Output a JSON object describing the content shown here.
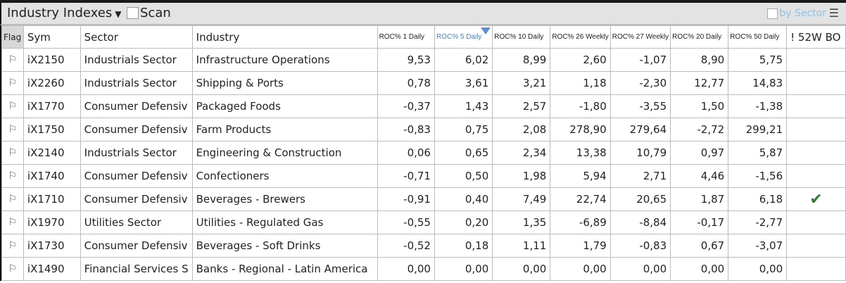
{
  "toolbar": {
    "title": "Industry Indexes",
    "scan_label": "Scan",
    "by_sector_label": "by Sector"
  },
  "columns": [
    "Flag",
    "Sym",
    "Sector",
    "Industry",
    "ROC% 1 Daily",
    "ROC% 5 Daily",
    "ROC% 10 Daily",
    "ROC% 26 Weekly",
    "ROC% 27 Weekly",
    "ROC% 20 Daily",
    "ROC% 50 Daily",
    "! 52W BO"
  ],
  "sorted_column": "ROC% 5 Daily",
  "rows": [
    {
      "sym": "iX2150",
      "sector": "Industrials Sector",
      "industry": "Infrastructure Operations",
      "v": [
        "9,53",
        "6,02",
        "8,99",
        "2,60",
        "-1,07",
        "8,90",
        "5,75"
      ],
      "bo": false
    },
    {
      "sym": "iX2260",
      "sector": "Industrials Sector",
      "industry": "Shipping & Ports",
      "v": [
        "0,78",
        "3,61",
        "3,21",
        "1,18",
        "-2,30",
        "12,77",
        "14,83"
      ],
      "bo": false
    },
    {
      "sym": "iX1770",
      "sector": "Consumer Defensiv",
      "industry": "Packaged Foods",
      "v": [
        "-0,37",
        "1,43",
        "2,57",
        "-1,80",
        "-3,55",
        "1,50",
        "-1,38"
      ],
      "bo": false
    },
    {
      "sym": "iX1750",
      "sector": "Consumer Defensiv",
      "industry": "Farm Products",
      "v": [
        "-0,83",
        "0,75",
        "2,08",
        "278,90",
        "279,64",
        "-2,72",
        "299,21"
      ],
      "bo": false
    },
    {
      "sym": "iX2140",
      "sector": "Industrials Sector",
      "industry": "Engineering & Construction",
      "v": [
        "0,06",
        "0,65",
        "2,34",
        "13,38",
        "10,79",
        "0,97",
        "5,87"
      ],
      "bo": false
    },
    {
      "sym": "iX1740",
      "sector": "Consumer Defensiv",
      "industry": "Confectioners",
      "v": [
        "-0,71",
        "0,50",
        "1,98",
        "5,94",
        "2,71",
        "4,46",
        "-1,56"
      ],
      "bo": false
    },
    {
      "sym": "iX1710",
      "sector": "Consumer Defensiv",
      "industry": "Beverages - Brewers",
      "v": [
        "-0,91",
        "0,40",
        "7,49",
        "22,74",
        "20,65",
        "1,87",
        "6,18"
      ],
      "bo": true
    },
    {
      "sym": "iX1970",
      "sector": "Utilities Sector",
      "industry": "Utilities - Regulated Gas",
      "v": [
        "-0,55",
        "0,20",
        "1,35",
        "-6,89",
        "-8,84",
        "-0,17",
        "-2,77"
      ],
      "bo": false
    },
    {
      "sym": "iX1730",
      "sector": "Consumer Defensiv",
      "industry": "Beverages - Soft Drinks",
      "v": [
        "-0,52",
        "0,18",
        "1,11",
        "1,79",
        "-0,83",
        "0,67",
        "-3,07"
      ],
      "bo": false
    },
    {
      "sym": "iX1490",
      "sector": "Financial Services S",
      "industry": "Banks - Regional - Latin America",
      "v": [
        "0,00",
        "0,00",
        "0,00",
        "0,00",
        "0,00",
        "0,00",
        "0,00"
      ],
      "bo": false
    }
  ],
  "icons": {
    "flag": "flag-outline-icon",
    "check": "checkmark-icon",
    "menu": "hamburger-menu-icon",
    "dropdown": "caret-down-icon"
  },
  "colors": {
    "check": "#2e7d32",
    "sorted_header": "#4a7fc0"
  }
}
